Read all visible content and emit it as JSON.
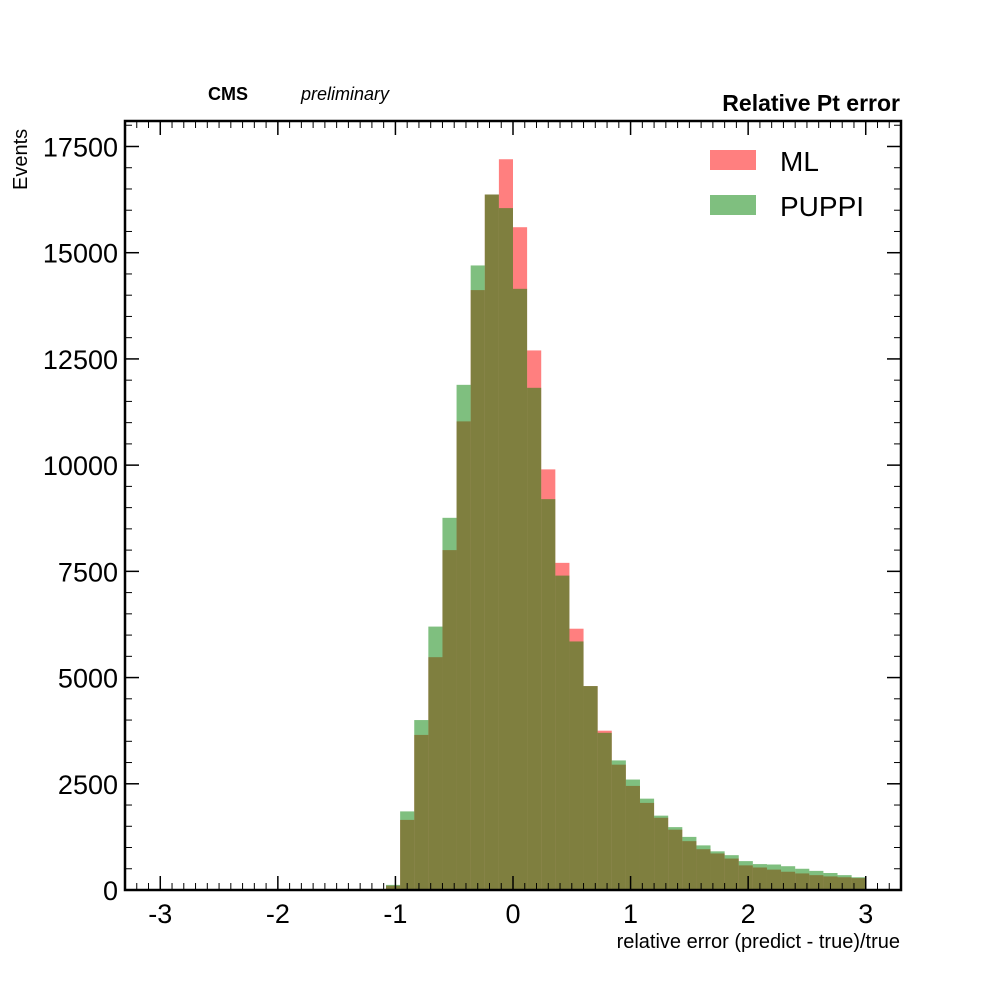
{
  "header": {
    "experiment": "CMS",
    "status": "preliminary"
  },
  "chart_data": {
    "type": "bar",
    "title": "Relative Pt error",
    "xlabel": "relative error (predict - true)/true",
    "ylabel": "Events",
    "xlim": [
      -3.3,
      3.3
    ],
    "ylim": [
      0,
      18100
    ],
    "xticks": [
      -3,
      -2,
      -1,
      0,
      1,
      2,
      3
    ],
    "xtick_labels": [
      "-3",
      "-2",
      "-1",
      "0",
      "1",
      "2",
      "3"
    ],
    "yticks": [
      0,
      2500,
      5000,
      7500,
      10000,
      12500,
      15000,
      17500
    ],
    "ytick_labels": [
      "0",
      "2500",
      "5000",
      "7500",
      "10000",
      "12500",
      "15000",
      "17500"
    ],
    "bin_edges": [
      -3.0,
      -2.88,
      -2.76,
      -2.64,
      -2.52,
      -2.4,
      -2.28,
      -2.16,
      -2.04,
      -1.92,
      -1.8,
      -1.68,
      -1.56,
      -1.44,
      -1.32,
      -1.2,
      -1.08,
      -0.96,
      -0.84,
      -0.72,
      -0.6,
      -0.48,
      -0.36,
      -0.24,
      -0.12,
      0.0,
      0.12,
      0.24,
      0.36,
      0.48,
      0.6,
      0.72,
      0.84,
      0.96,
      1.08,
      1.2,
      1.32,
      1.44,
      1.56,
      1.68,
      1.8,
      1.92,
      2.04,
      2.16,
      2.28,
      2.4,
      2.52,
      2.64,
      2.76,
      2.88,
      3.0
    ],
    "legend_position": "top-right",
    "series": [
      {
        "name": "ML",
        "color": "#ff0000",
        "alpha": 0.5,
        "values": [
          0,
          0,
          0,
          0,
          0,
          0,
          0,
          0,
          0,
          0,
          0,
          0,
          0,
          0,
          0,
          0,
          100,
          1650,
          3650,
          5480,
          8000,
          11030,
          14120,
          16370,
          17200,
          15600,
          12700,
          9900,
          7700,
          6150,
          4800,
          3750,
          2950,
          2450,
          2050,
          1700,
          1420,
          1150,
          960,
          860,
          740,
          580,
          530,
          480,
          430,
          390,
          350,
          320,
          300,
          280
        ]
      },
      {
        "name": "PUPPI",
        "color": "#008000",
        "alpha": 0.5,
        "values": [
          0,
          0,
          0,
          0,
          0,
          0,
          0,
          0,
          0,
          0,
          0,
          0,
          0,
          0,
          0,
          0,
          120,
          1850,
          4000,
          6200,
          8760,
          11890,
          14700,
          16370,
          16050,
          14150,
          11820,
          9200,
          7400,
          5850,
          4800,
          3700,
          3050,
          2600,
          2150,
          1750,
          1480,
          1250,
          1050,
          910,
          820,
          680,
          610,
          600,
          560,
          500,
          450,
          400,
          350,
          300
        ]
      }
    ]
  }
}
